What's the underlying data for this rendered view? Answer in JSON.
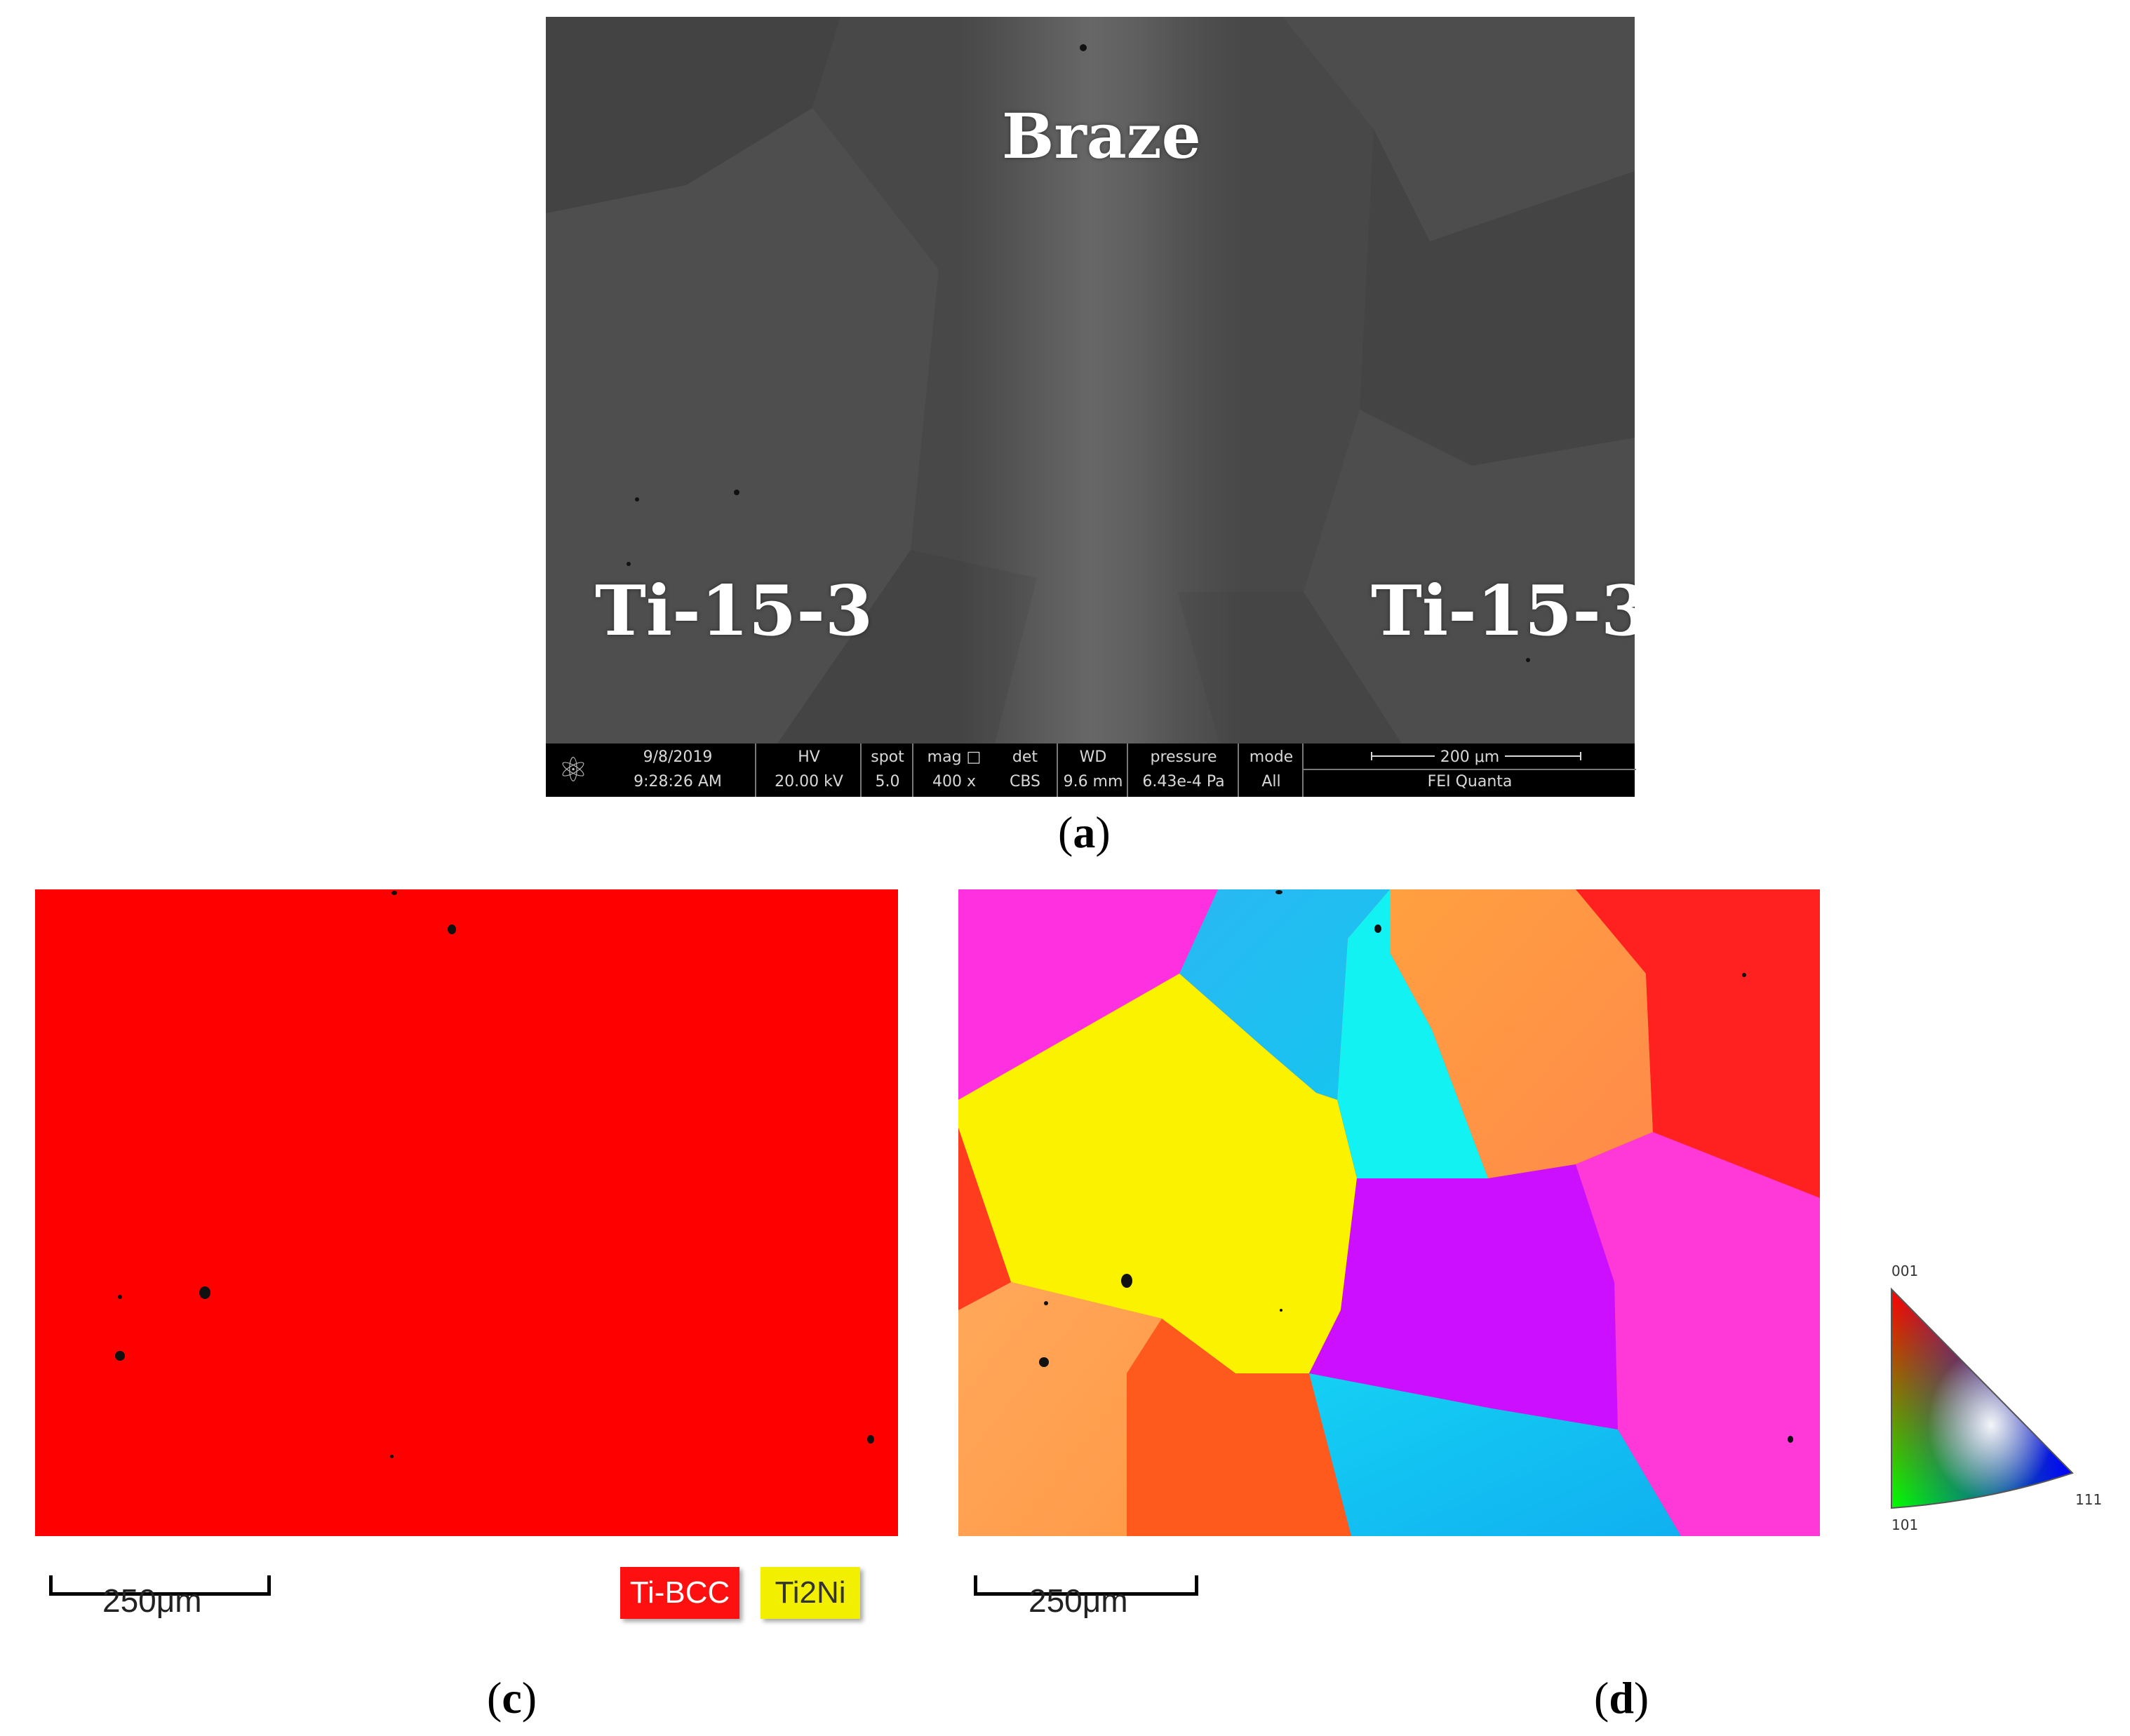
{
  "panel_a": {
    "region_labels": {
      "center": "Braze",
      "left": "Ti-15-3",
      "right": "Ti-15-3"
    },
    "databar": {
      "date": "9/8/2019",
      "time": "9:28:26 AM",
      "hv_label": "HV",
      "hv_value": "20.00 kV",
      "spot_label": "spot",
      "spot_value": "5.0",
      "mag_label": "mag □",
      "mag_value": "400 x",
      "det_label": "det",
      "det_value": "CBS",
      "wd_label": "WD",
      "wd_value": "9.6 mm",
      "pressure_label": "pressure",
      "pressure_value": "6.43e-4 Pa",
      "mode_label": "mode",
      "mode_value": "All",
      "scale_label": "200 μm",
      "instrument": "FEI Quanta"
    },
    "caption_letter": "a"
  },
  "panel_c": {
    "scale_label": "250μm",
    "legend": [
      {
        "label": "Ti-BCC",
        "color": "#ff1010",
        "text_color": "#ffffff"
      },
      {
        "label": "Ti2Ni",
        "color": "#f2f000",
        "text_color": "#333333"
      }
    ],
    "caption_letter": "c"
  },
  "panel_d": {
    "scale_label": "250μm",
    "ipf_key": {
      "top_label": "001",
      "bottom_left_label": "101",
      "right_label": "111"
    },
    "caption_letter": "d"
  }
}
